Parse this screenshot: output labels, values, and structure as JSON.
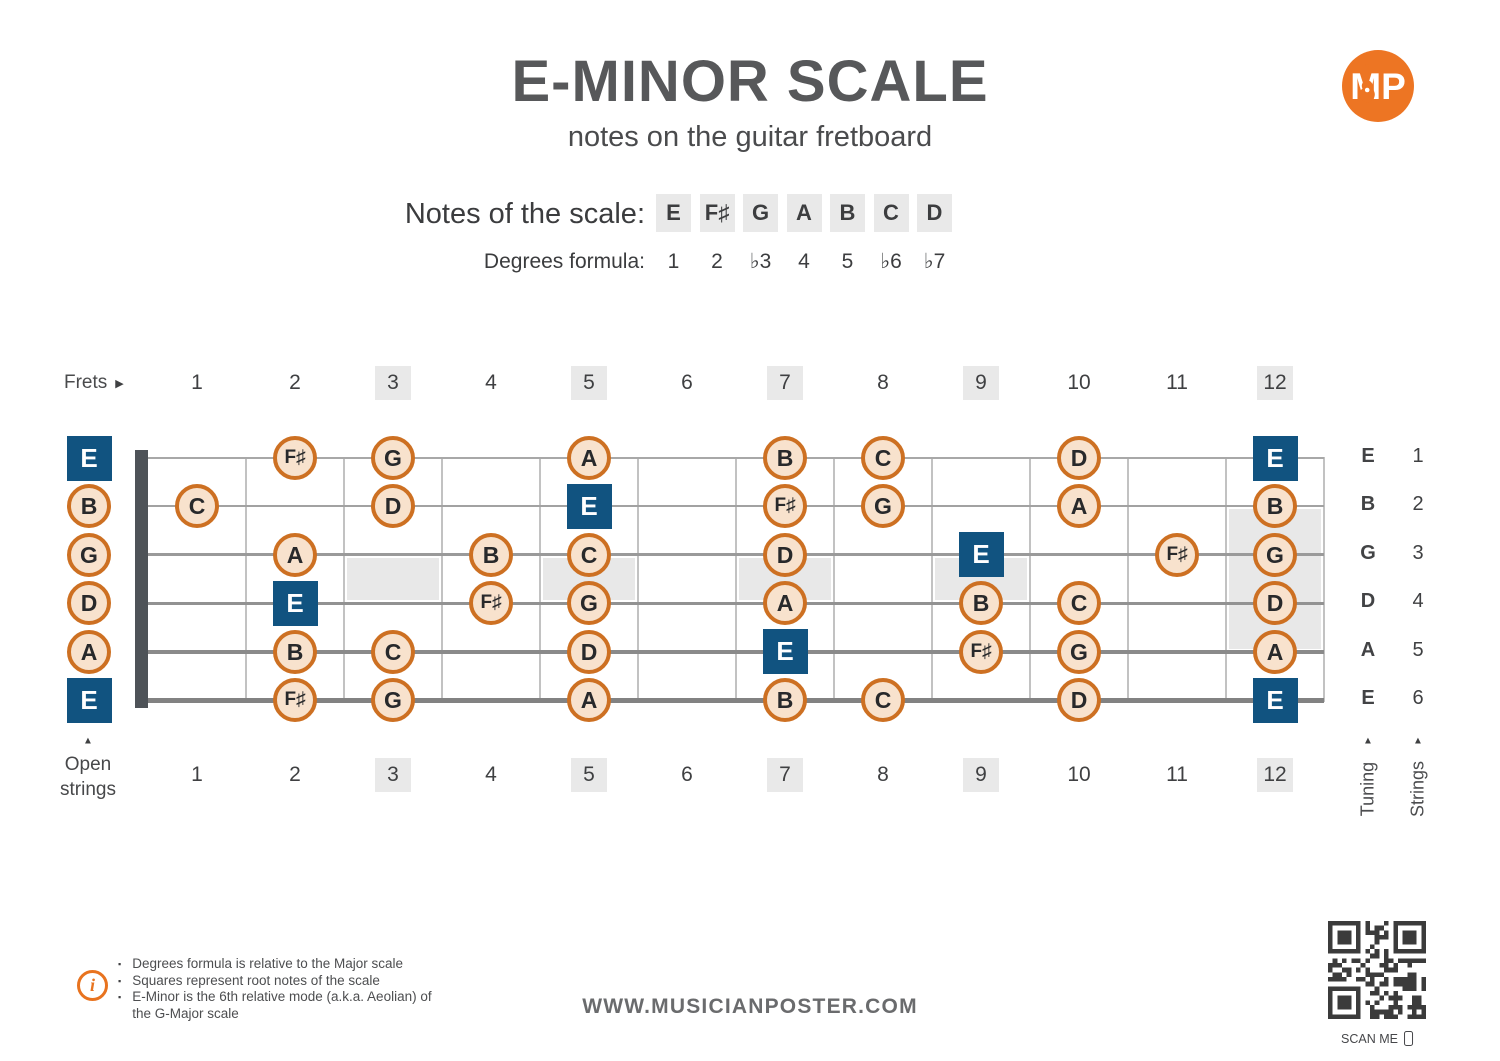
{
  "colors": {
    "root_blue": "#115380",
    "note_ring_orange": "#cd7022",
    "note_fill_peach": "#f8e2cd",
    "accent_orange": "#e8731f",
    "highlight_gray": "#e9e9e9",
    "marker_gray": "#e8e8e8",
    "title_gray": "#57585a"
  },
  "header": {
    "title": "E-MINOR SCALE",
    "subtitle": "notes on the guitar fretboard",
    "logo_text": "MP"
  },
  "scale": {
    "label": "Notes of the scale:",
    "notes": [
      "E",
      "F♯",
      "G",
      "A",
      "B",
      "C",
      "D"
    ],
    "degrees_label": "Degrees formula:",
    "degrees": [
      "1",
      "2",
      "♭3",
      "4",
      "5",
      "♭6",
      "♭7"
    ]
  },
  "fretboard": {
    "frets_label": "Frets",
    "fret_count": 12,
    "highlight_frets": [
      3,
      5,
      7,
      9,
      12
    ],
    "single_marker_frets": [
      3,
      5,
      7,
      9
    ],
    "double_marker_frets": [
      12
    ],
    "open_strings_label": "Open strings",
    "tuning_label": "Tuning",
    "strings_label": "Strings",
    "strings": [
      {
        "number": 1,
        "tuning": "E",
        "open": {
          "note": "E",
          "root": true
        },
        "frets": [
          {
            "fret": 2,
            "note": "F♯"
          },
          {
            "fret": 3,
            "note": "G"
          },
          {
            "fret": 5,
            "note": "A"
          },
          {
            "fret": 7,
            "note": "B"
          },
          {
            "fret": 8,
            "note": "C"
          },
          {
            "fret": 10,
            "note": "D"
          },
          {
            "fret": 12,
            "note": "E",
            "root": true
          }
        ]
      },
      {
        "number": 2,
        "tuning": "B",
        "open": {
          "note": "B"
        },
        "frets": [
          {
            "fret": 1,
            "note": "C"
          },
          {
            "fret": 3,
            "note": "D"
          },
          {
            "fret": 5,
            "note": "E",
            "root": true
          },
          {
            "fret": 7,
            "note": "F♯"
          },
          {
            "fret": 8,
            "note": "G"
          },
          {
            "fret": 10,
            "note": "A"
          },
          {
            "fret": 12,
            "note": "B"
          }
        ]
      },
      {
        "number": 3,
        "tuning": "G",
        "open": {
          "note": "G"
        },
        "frets": [
          {
            "fret": 2,
            "note": "A"
          },
          {
            "fret": 4,
            "note": "B"
          },
          {
            "fret": 5,
            "note": "C"
          },
          {
            "fret": 7,
            "note": "D"
          },
          {
            "fret": 9,
            "note": "E",
            "root": true
          },
          {
            "fret": 11,
            "note": "F♯"
          },
          {
            "fret": 12,
            "note": "G"
          }
        ]
      },
      {
        "number": 4,
        "tuning": "D",
        "open": {
          "note": "D"
        },
        "frets": [
          {
            "fret": 2,
            "note": "E",
            "root": true
          },
          {
            "fret": 4,
            "note": "F♯"
          },
          {
            "fret": 5,
            "note": "G"
          },
          {
            "fret": 7,
            "note": "A"
          },
          {
            "fret": 9,
            "note": "B"
          },
          {
            "fret": 10,
            "note": "C"
          },
          {
            "fret": 12,
            "note": "D"
          }
        ]
      },
      {
        "number": 5,
        "tuning": "A",
        "open": {
          "note": "A"
        },
        "frets": [
          {
            "fret": 2,
            "note": "B"
          },
          {
            "fret": 3,
            "note": "C"
          },
          {
            "fret": 5,
            "note": "D"
          },
          {
            "fret": 7,
            "note": "E",
            "root": true
          },
          {
            "fret": 9,
            "note": "F♯"
          },
          {
            "fret": 10,
            "note": "G"
          },
          {
            "fret": 12,
            "note": "A"
          }
        ]
      },
      {
        "number": 6,
        "tuning": "E",
        "open": {
          "note": "E",
          "root": true
        },
        "frets": [
          {
            "fret": 2,
            "note": "F♯"
          },
          {
            "fret": 3,
            "note": "G"
          },
          {
            "fret": 5,
            "note": "A"
          },
          {
            "fret": 7,
            "note": "B"
          },
          {
            "fret": 8,
            "note": "C"
          },
          {
            "fret": 10,
            "note": "D"
          },
          {
            "fret": 12,
            "note": "E",
            "root": true
          }
        ]
      }
    ]
  },
  "footer": {
    "info_notes": [
      "Degrees formula is relative to the Major scale",
      "Squares represent root notes of the scale",
      "E-Minor is the 6th relative mode (a.k.a. Aeolian) of the G-Major scale"
    ],
    "website": "WWW.MUSICIANPOSTER.COM",
    "scan_label": "SCAN ME"
  },
  "icons": {
    "right_arrow": "▶",
    "up_arrow": "▲",
    "info": "i",
    "bullet": "▪"
  }
}
